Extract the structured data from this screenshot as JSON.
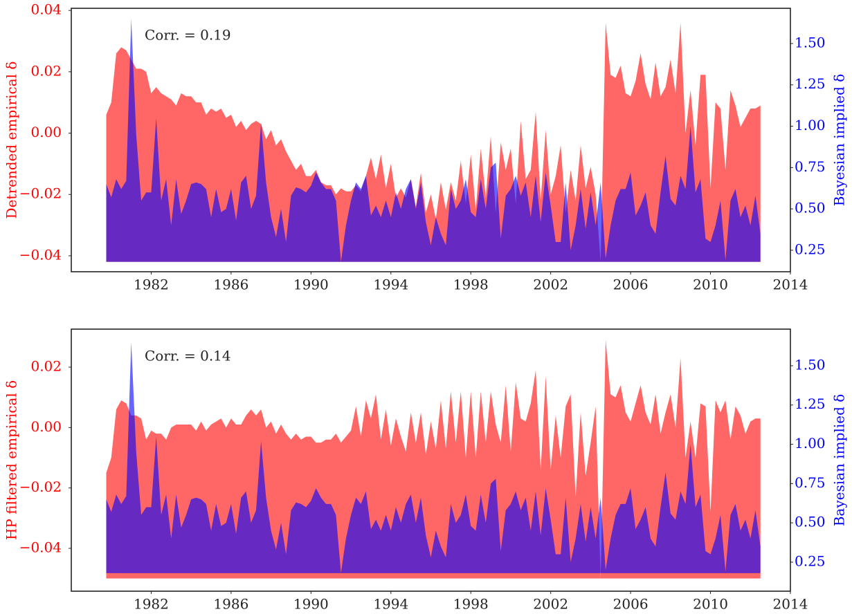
{
  "chart_data": [
    {
      "type": "area",
      "annotation": "Corr. = 0.19",
      "ylabel": "Detrended empirical δ",
      "y2label": "Bayesian implied δ",
      "x": [
        1979.75,
        1980,
        1980.25,
        1980.5,
        1980.75,
        1981,
        1981.25,
        1981.5,
        1981.75,
        1982,
        1982.25,
        1982.5,
        1982.75,
        1983,
        1983.25,
        1983.5,
        1983.75,
        1984,
        1984.25,
        1984.5,
        1984.75,
        1985,
        1985.25,
        1985.5,
        1985.75,
        1986,
        1986.25,
        1986.5,
        1986.75,
        1987,
        1987.25,
        1987.5,
        1987.75,
        1988,
        1988.25,
        1988.5,
        1988.75,
        1989,
        1989.25,
        1989.5,
        1989.75,
        1990,
        1990.25,
        1990.5,
        1990.75,
        1991,
        1991.25,
        1991.5,
        1991.75,
        1992,
        1992.25,
        1992.5,
        1992.75,
        1993,
        1993.25,
        1993.5,
        1993.75,
        1994,
        1994.25,
        1994.5,
        1994.75,
        1995,
        1995.25,
        1995.5,
        1995.75,
        1996,
        1996.25,
        1996.5,
        1996.75,
        1997,
        1997.25,
        1997.5,
        1997.75,
        1998,
        1998.25,
        1998.5,
        1998.75,
        1999,
        1999.25,
        1999.5,
        1999.75,
        2000,
        2000.25,
        2000.5,
        2000.75,
        2001,
        2001.25,
        2001.5,
        2001.75,
        2002,
        2002.25,
        2002.5,
        2002.75,
        2003,
        2003.25,
        2003.5,
        2003.75,
        2004,
        2004.25,
        2004.5,
        2004.75,
        2005,
        2005.25,
        2005.5,
        2005.75,
        2006,
        2006.25,
        2006.5,
        2006.75,
        2007,
        2007.25,
        2007.5,
        2007.75,
        2008,
        2008.25,
        2008.5,
        2008.75,
        2009,
        2009.25,
        2009.5,
        2009.75,
        2010,
        2010.25,
        2010.5,
        2010.75,
        2011,
        2011.25,
        2011.5,
        2011.75,
        2012,
        2012.25,
        2012.5
      ],
      "xlim": [
        1978,
        2014
      ],
      "xticks": [
        1982,
        1986,
        1990,
        1994,
        1998,
        2002,
        2006,
        2010,
        2014
      ],
      "ylim": [
        -0.0452,
        0.0407
      ],
      "yticks": [
        {
          "value": -0.04,
          "label": "−0.04"
        },
        {
          "value": -0.02,
          "label": "−0.02"
        },
        {
          "value": 0,
          "label": "0.00"
        },
        0.02,
        0.04
      ],
      "y2lim": [
        0.12,
        1.713
      ],
      "y2ticks": [
        0.25,
        {
          "value": 0.5,
          "label": "0.50"
        },
        0.75,
        {
          "value": 1,
          "label": "1.00"
        },
        1.25,
        {
          "value": 1.5,
          "label": "1.50"
        }
      ],
      "series": [
        {
          "color": "#ff0000",
          "values": [
            0.006,
            0.01,
            0.026,
            0.028,
            0.027,
            0.024,
            0.021,
            0.021,
            0.02,
            0.013,
            0.015,
            0.013,
            0.012,
            0.011,
            0.009,
            0.013,
            0.012,
            0.012,
            0.01,
            0.01,
            0.006,
            0.008,
            0.007,
            0.008,
            0.005,
            0.006,
            0.002,
            0.004,
            0.001,
            0.003,
            0.004,
            0.003,
            -0.002,
            0.001,
            -0.004,
            -0.002,
            -0.006,
            -0.009,
            -0.012,
            -0.01,
            -0.014,
            -0.014,
            -0.012,
            -0.016,
            -0.017,
            -0.017,
            -0.02,
            -0.018,
            -0.019,
            -0.019,
            -0.017,
            -0.019,
            -0.014,
            -0.008,
            -0.015,
            -0.007,
            -0.018,
            -0.01,
            -0.021,
            -0.018,
            -0.021,
            -0.015,
            -0.024,
            -0.013,
            -0.026,
            -0.02,
            -0.028,
            -0.016,
            -0.025,
            -0.016,
            -0.022,
            -0.009,
            -0.023,
            -0.007,
            -0.025,
            -0.005,
            -0.021,
            -0.001,
            -0.026,
            -0.003,
            -0.012,
            -0.005,
            -0.023,
            0.004,
            -0.015,
            -0.012,
            0.007,
            -0.022,
            0.001,
            -0.02,
            -0.014,
            -0.004,
            -0.026,
            -0.012,
            -0.022,
            -0.004,
            -0.018,
            -0.011,
            -0.02,
            -0.042,
            0.036,
            0.019,
            0.018,
            0.022,
            0.013,
            0.012,
            0.017,
            0.026,
            0.016,
            0.011,
            0.023,
            0.012,
            0.015,
            0.024,
            0.013,
            0.036,
            0.0,
            0.014,
            -0.004,
            0.019,
            0.019,
            -0.018,
            0.01,
            0.008,
            -0.012,
            0.014,
            0.009,
            0.002,
            0.005,
            0.008,
            0.008,
            0.009
          ]
        },
        {
          "color": "#0000ff",
          "axis": "y2",
          "values": [
            0.65,
            0.57,
            0.68,
            0.62,
            0.67,
            1.65,
            0.95,
            0.55,
            0.6,
            0.6,
            1.05,
            0.55,
            0.68,
            0.4,
            0.68,
            0.47,
            0.55,
            0.65,
            0.66,
            0.65,
            0.62,
            0.45,
            0.62,
            0.48,
            0.5,
            0.62,
            0.43,
            0.66,
            0.7,
            0.5,
            0.58,
            1.02,
            0.66,
            0.45,
            0.33,
            0.5,
            0.3,
            0.58,
            0.63,
            0.62,
            0.6,
            0.64,
            0.72,
            0.66,
            0.62,
            0.62,
            0.55,
            0.18,
            0.4,
            0.55,
            0.66,
            0.62,
            0.7,
            0.46,
            0.52,
            0.45,
            0.55,
            0.45,
            0.6,
            0.5,
            0.62,
            0.68,
            0.5,
            0.66,
            0.42,
            0.28,
            0.45,
            0.35,
            0.28,
            0.62,
            0.5,
            0.55,
            0.68,
            0.48,
            0.45,
            0.68,
            0.5,
            0.75,
            0.78,
            0.32,
            0.58,
            0.62,
            0.7,
            0.58,
            0.66,
            0.45,
            0.7,
            0.42,
            0.72,
            0.52,
            0.3,
            0.3,
            0.66,
            0.25,
            0.4,
            0.62,
            0.38,
            0.6,
            0.4,
            0.66,
            0.2,
            0.4,
            0.55,
            0.62,
            0.62,
            0.72,
            0.46,
            0.52,
            0.6,
            0.4,
            0.35,
            0.6,
            0.82,
            0.56,
            0.52,
            0.7,
            0.62,
            1.0,
            0.6,
            0.68,
            0.32,
            0.3,
            0.4,
            0.55,
            0.19,
            0.55,
            0.62,
            0.45,
            0.52,
            0.4,
            0.58,
            0.35
          ]
        }
      ]
    },
    {
      "type": "area",
      "annotation": "Corr. = 0.14",
      "ylabel": "HP filtered empirical δ",
      "y2label": "Bayesian implied δ",
      "x": [
        1979.75,
        1980,
        1980.25,
        1980.5,
        1980.75,
        1981,
        1981.25,
        1981.5,
        1981.75,
        1982,
        1982.25,
        1982.5,
        1982.75,
        1983,
        1983.25,
        1983.5,
        1983.75,
        1984,
        1984.25,
        1984.5,
        1984.75,
        1985,
        1985.25,
        1985.5,
        1985.75,
        1986,
        1986.25,
        1986.5,
        1986.75,
        1987,
        1987.25,
        1987.5,
        1987.75,
        1988,
        1988.25,
        1988.5,
        1988.75,
        1989,
        1989.25,
        1989.5,
        1989.75,
        1990,
        1990.25,
        1990.5,
        1990.75,
        1991,
        1991.25,
        1991.5,
        1991.75,
        1992,
        1992.25,
        1992.5,
        1992.75,
        1993,
        1993.25,
        1993.5,
        1993.75,
        1994,
        1994.25,
        1994.5,
        1994.75,
        1995,
        1995.25,
        1995.5,
        1995.75,
        1996,
        1996.25,
        1996.5,
        1996.75,
        1997,
        1997.25,
        1997.5,
        1997.75,
        1998,
        1998.25,
        1998.5,
        1998.75,
        1999,
        1999.25,
        1999.5,
        1999.75,
        2000,
        2000.25,
        2000.5,
        2000.75,
        2001,
        2001.25,
        2001.5,
        2001.75,
        2002,
        2002.25,
        2002.5,
        2002.75,
        2003,
        2003.25,
        2003.5,
        2003.75,
        2004,
        2004.25,
        2004.5,
        2004.75,
        2005,
        2005.25,
        2005.5,
        2005.75,
        2006,
        2006.25,
        2006.5,
        2006.75,
        2007,
        2007.25,
        2007.5,
        2007.75,
        2008,
        2008.25,
        2008.5,
        2008.75,
        2009,
        2009.25,
        2009.5,
        2009.75,
        2010,
        2010.25,
        2010.5,
        2010.75,
        2011,
        2011.25,
        2011.5,
        2011.75,
        2012,
        2012.25,
        2012.5
      ],
      "xlim": [
        1978,
        2014
      ],
      "xticks": [
        1982,
        1986,
        1990,
        1994,
        1998,
        2002,
        2006,
        2010,
        2014
      ],
      "ylim": [
        -0.0542,
        0.0326
      ],
      "yticks": [
        {
          "value": -0.04,
          "label": "−0.04"
        },
        {
          "value": -0.02,
          "label": "−0.02"
        },
        {
          "value": 0,
          "label": "0.00"
        },
        0.02
      ],
      "y2lim": [
        0.065,
        1.733
      ],
      "y2ticks": [
        0.25,
        {
          "value": 0.5,
          "label": "0.50"
        },
        0.75,
        {
          "value": 1,
          "label": "1.00"
        },
        1.25,
        {
          "value": 1.5,
          "label": "1.50"
        }
      ],
      "series": [
        {
          "color": "#ff0000",
          "values": [
            -0.015,
            -0.01,
            0.006,
            0.009,
            0.008,
            0.004,
            0.004,
            0.003,
            -0.004,
            -0.001,
            -0.002,
            -0.002,
            -0.004,
            0.0,
            0.001,
            0.001,
            0.001,
            0.001,
            -0.001,
            0.002,
            -0.001,
            0.001,
            0.002,
            0.003,
            0.0,
            0.003,
            0.001,
            0.001,
            0.004,
            0.006,
            0.004,
            0.006,
            0.0,
            0.002,
            -0.002,
            0.001,
            -0.002,
            -0.004,
            -0.002,
            -0.004,
            -0.003,
            -0.003,
            -0.005,
            -0.005,
            -0.004,
            -0.004,
            -0.002,
            -0.005,
            -0.003,
            -0.001,
            0.007,
            -0.003,
            0.009,
            0.003,
            0.011,
            -0.004,
            0.006,
            -0.006,
            0.003,
            -0.003,
            -0.008,
            0.005,
            -0.005,
            0.005,
            -0.009,
            0.002,
            -0.007,
            0.009,
            -0.007,
            0.012,
            -0.005,
            0.012,
            -0.01,
            0.012,
            -0.01,
            0.012,
            -0.005,
            0.012,
            0.001,
            -0.005,
            0.014,
            -0.008,
            0.015,
            0.003,
            0.002,
            0.008,
            0.019,
            -0.014,
            0.017,
            -0.014,
            0.004,
            -0.01,
            0.007,
            0.011,
            -0.023,
            0.005,
            -0.016,
            -0.005,
            0.007,
            -0.05,
            0.029,
            0.011,
            0.01,
            0.014,
            0.005,
            0.002,
            0.008,
            0.014,
            0.005,
            0.001,
            0.011,
            -0.002,
            0.005,
            0.011,
            0.0,
            0.023,
            -0.01,
            0.002,
            -0.01,
            0.008,
            0.007,
            -0.028,
            0.009,
            0.005,
            0.009,
            -0.004,
            0.007,
            0.004,
            -0.002,
            0.002,
            0.003,
            0.003
          ]
        },
        {
          "color": "#0000ff",
          "axis": "y2",
          "values": [
            0.65,
            0.57,
            0.68,
            0.62,
            0.67,
            1.65,
            0.95,
            0.55,
            0.6,
            0.6,
            1.05,
            0.55,
            0.68,
            0.4,
            0.68,
            0.47,
            0.55,
            0.65,
            0.66,
            0.65,
            0.62,
            0.45,
            0.62,
            0.48,
            0.5,
            0.62,
            0.43,
            0.66,
            0.7,
            0.5,
            0.58,
            1.02,
            0.66,
            0.45,
            0.33,
            0.5,
            0.3,
            0.58,
            0.63,
            0.62,
            0.6,
            0.64,
            0.72,
            0.66,
            0.62,
            0.62,
            0.55,
            0.18,
            0.4,
            0.55,
            0.66,
            0.62,
            0.7,
            0.46,
            0.52,
            0.45,
            0.55,
            0.45,
            0.6,
            0.5,
            0.62,
            0.68,
            0.5,
            0.66,
            0.42,
            0.28,
            0.45,
            0.35,
            0.28,
            0.62,
            0.5,
            0.55,
            0.68,
            0.48,
            0.45,
            0.68,
            0.5,
            0.75,
            0.78,
            0.32,
            0.58,
            0.62,
            0.7,
            0.58,
            0.66,
            0.45,
            0.7,
            0.42,
            0.72,
            0.52,
            0.3,
            0.3,
            0.66,
            0.25,
            0.4,
            0.62,
            0.38,
            0.6,
            0.4,
            0.66,
            0.2,
            0.4,
            0.55,
            0.62,
            0.62,
            0.72,
            0.46,
            0.52,
            0.6,
            0.4,
            0.35,
            0.6,
            0.82,
            0.56,
            0.52,
            0.7,
            0.62,
            1.0,
            0.6,
            0.68,
            0.32,
            0.3,
            0.4,
            0.55,
            0.19,
            0.55,
            0.62,
            0.45,
            0.52,
            0.4,
            0.58,
            0.35
          ]
        }
      ]
    }
  ]
}
